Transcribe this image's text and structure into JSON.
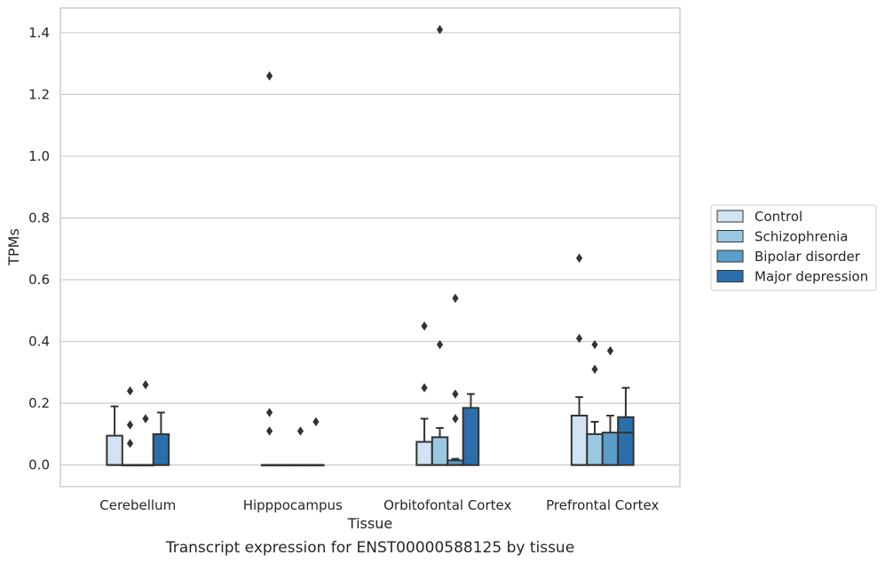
{
  "chart_data": {
    "type": "box",
    "xlabel": "Tissue",
    "ylabel": "TPMs",
    "caption": "Transcript expression for ENST00000588125 by tissue",
    "ylim": [
      -0.07,
      1.48
    ],
    "yticks": [
      0.0,
      0.2,
      0.4,
      0.6,
      0.8,
      1.0,
      1.2,
      1.4
    ],
    "ytick_labels": [
      "0.0",
      "0.2",
      "0.4",
      "0.6",
      "0.8",
      "1.0",
      "1.2",
      "1.4"
    ],
    "grid": "horizontal",
    "legend_position": "outside-right",
    "categories": [
      "Cerebellum",
      "Hipppocampus",
      "Orbitofontal Cortex",
      "Prefrontal Cortex"
    ],
    "series": [
      {
        "name": "Control",
        "color": "#d2e3f3",
        "boxes": [
          {
            "q1": 0.0,
            "median": 0.0,
            "q3": 0.095,
            "whisker_low": 0.0,
            "whisker_high": 0.19,
            "outliers": []
          },
          {
            "q1": 0.0,
            "median": 0.0,
            "q3": 0.0,
            "whisker_low": 0.0,
            "whisker_high": 0.0,
            "outliers": [
              0.11,
              0.17,
              1.26
            ]
          },
          {
            "q1": 0.0,
            "median": 0.0,
            "q3": 0.075,
            "whisker_low": 0.0,
            "whisker_high": 0.15,
            "outliers": [
              0.25,
              0.45
            ]
          },
          {
            "q1": 0.0,
            "median": 0.0,
            "q3": 0.16,
            "whisker_low": 0.0,
            "whisker_high": 0.22,
            "outliers": [
              0.41,
              0.67
            ]
          }
        ]
      },
      {
        "name": "Schizophrenia",
        "color": "#9ac8e0",
        "boxes": [
          {
            "q1": 0.0,
            "median": 0.0,
            "q3": 0.0,
            "whisker_low": 0.0,
            "whisker_high": 0.0,
            "outliers": [
              0.07,
              0.13,
              0.24
            ]
          },
          {
            "q1": 0.0,
            "median": 0.0,
            "q3": 0.0,
            "whisker_low": 0.0,
            "whisker_high": 0.0,
            "outliers": []
          },
          {
            "q1": 0.0,
            "median": 0.0,
            "q3": 0.09,
            "whisker_low": 0.0,
            "whisker_high": 0.12,
            "outliers": [
              0.39,
              1.41
            ]
          },
          {
            "q1": 0.0,
            "median": 0.0,
            "q3": 0.1,
            "whisker_low": 0.0,
            "whisker_high": 0.14,
            "outliers": [
              0.31,
              0.39
            ]
          }
        ]
      },
      {
        "name": "Bipolar disorder",
        "color": "#5a9ec9",
        "boxes": [
          {
            "q1": 0.0,
            "median": 0.0,
            "q3": 0.0,
            "whisker_low": 0.0,
            "whisker_high": 0.0,
            "outliers": [
              0.15,
              0.26
            ]
          },
          {
            "q1": 0.0,
            "median": 0.0,
            "q3": 0.0,
            "whisker_low": 0.0,
            "whisker_high": 0.0,
            "outliers": [
              0.11
            ]
          },
          {
            "q1": 0.0,
            "median": 0.0,
            "q3": 0.015,
            "whisker_low": 0.0,
            "whisker_high": 0.02,
            "outliers": [
              0.15,
              0.23,
              0.54
            ]
          },
          {
            "q1": 0.0,
            "median": 0.0,
            "q3": 0.105,
            "whisker_low": 0.0,
            "whisker_high": 0.16,
            "outliers": [
              0.37
            ]
          }
        ]
      },
      {
        "name": "Major depression",
        "color": "#2a6fac",
        "boxes": [
          {
            "q1": 0.0,
            "median": 0.0,
            "q3": 0.1,
            "whisker_low": 0.0,
            "whisker_high": 0.17,
            "outliers": []
          },
          {
            "q1": 0.0,
            "median": 0.0,
            "q3": 0.0,
            "whisker_low": 0.0,
            "whisker_high": 0.0,
            "outliers": [
              0.14
            ]
          },
          {
            "q1": 0.0,
            "median": 0.0,
            "q3": 0.185,
            "whisker_low": 0.0,
            "whisker_high": 0.23,
            "outliers": []
          },
          {
            "q1": 0.0,
            "median": 0.105,
            "q3": 0.155,
            "whisker_low": 0.0,
            "whisker_high": 0.25,
            "outliers": []
          }
        ]
      }
    ],
    "colors": {
      "grid": "#cccccc",
      "frame": "#cccccc",
      "outline": "#333333",
      "text": "#262626"
    }
  }
}
